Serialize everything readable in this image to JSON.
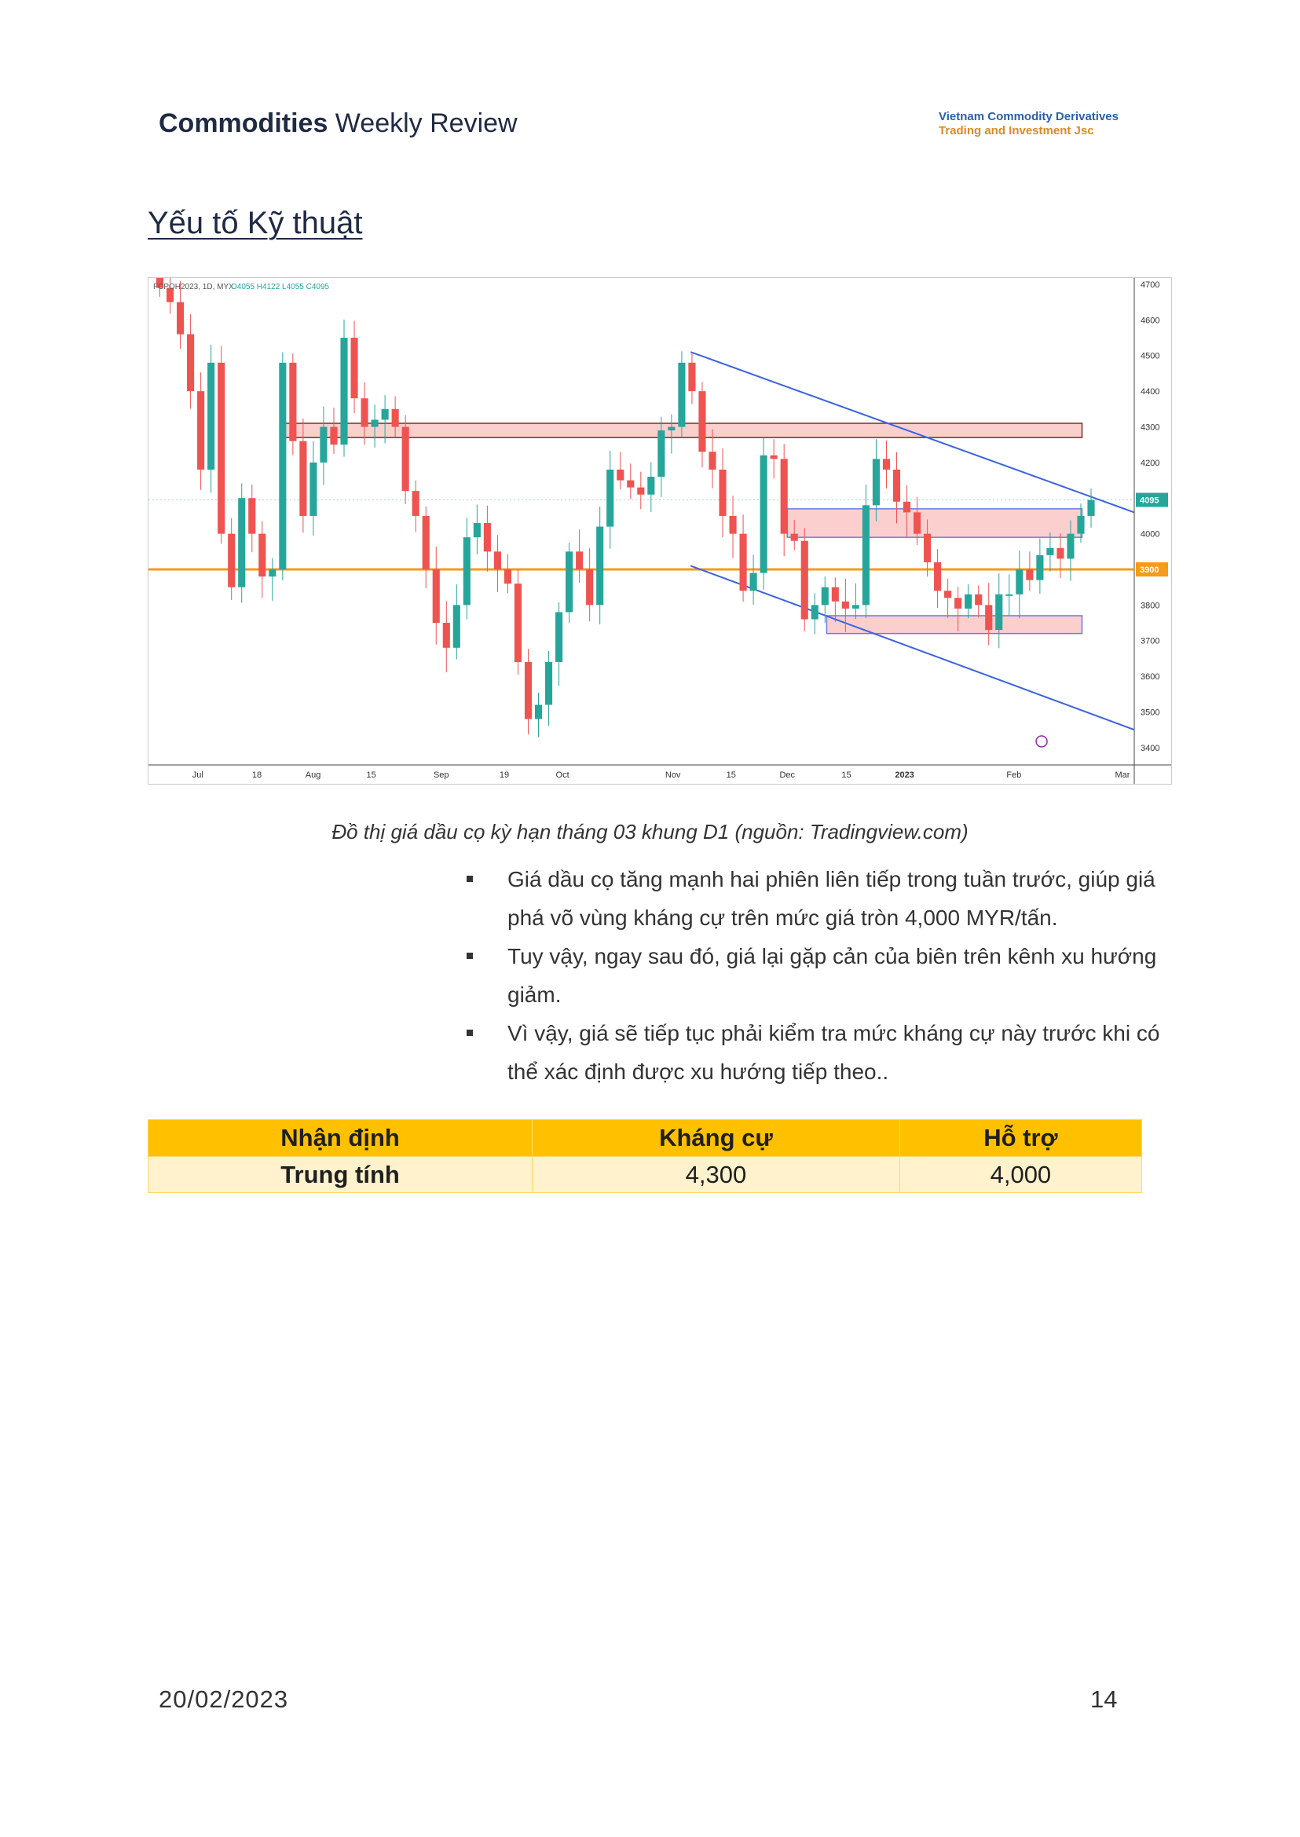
{
  "header": {
    "bold": "Commodities",
    "rest": " Weekly Review"
  },
  "logo": {
    "line1": "Vietnam Commodity Derivatives",
    "line2": "Trading and Investment Jsc"
  },
  "section_title": "Yếu tố Kỹ thuật",
  "chart_data": {
    "type": "candlestick",
    "title": "FCPOH2023, 1D, MYX",
    "ohlc_label": "O4055 H4122 L4055 C4095",
    "y_ticks": [
      4700,
      4600,
      4500,
      4400,
      4300,
      4200,
      4100,
      4000,
      3900,
      3800,
      3700,
      3600,
      3500,
      3400
    ],
    "ylim": [
      3360,
      4700
    ],
    "x_ticks": [
      "Jul",
      "18",
      "Aug",
      "15",
      "Sep",
      "19",
      "Oct",
      "Nov",
      "15",
      "Dec",
      "15",
      "2023",
      "Feb",
      "Mar"
    ],
    "price_label_current": "4095",
    "price_label_level": "3900",
    "horizontal_level": 3900,
    "resistance_zone": [
      4270,
      4310
    ],
    "zone_mid": [
      3990,
      4070
    ],
    "zone_low": [
      3720,
      3770
    ],
    "channel_upper": [
      [
        0.55,
        4510
      ],
      [
        1.0,
        4060
      ]
    ],
    "channel_lower": [
      [
        0.55,
        3910
      ],
      [
        1.0,
        3450
      ]
    ],
    "colors": {
      "up": "#26a69a",
      "down": "#ef5350",
      "level": "#f59b1a",
      "channel": "#3a62e0"
    },
    "closes": [
      4690,
      4650,
      4560,
      4400,
      4180,
      4480,
      4000,
      3850,
      4100,
      4000,
      3880,
      3900,
      4480,
      4260,
      4050,
      4200,
      4300,
      4250,
      4550,
      4380,
      4300,
      4320,
      4350,
      4300,
      4120,
      4050,
      3900,
      3750,
      3680,
      3800,
      3990,
      4030,
      3950,
      3900,
      3860,
      3640,
      3480,
      3520,
      3640,
      3780,
      3950,
      3900,
      3800,
      4020,
      4180,
      4150,
      4130,
      4110,
      4160,
      4290,
      4300,
      4480,
      4400,
      4230,
      4180,
      4050,
      4000,
      3840,
      3890,
      4220,
      4210,
      4000,
      3980,
      3760,
      3800,
      3850,
      3810,
      3790,
      3800,
      4080,
      4210,
      4180,
      4090,
      4060,
      4000,
      3920,
      3840,
      3820,
      3790,
      3830,
      3800,
      3730,
      3830,
      3830,
      3900,
      3870,
      3940,
      3960,
      3930,
      4000,
      4050,
      4095
    ]
  },
  "caption": "Đồ thị giá dầu cọ kỳ hạn tháng 03 khung D1 (nguồn: Tradingview.com)",
  "bullets": [
    "Giá dầu cọ tăng mạnh hai phiên liên tiếp trong tuần trước, giúp giá phá võ vùng kháng cự trên mức giá tròn 4,000 MYR/tấn.",
    "Tuy vậy, ngay sau đó, giá lại gặp cản của biên trên kênh xu hướng giảm.",
    "Vì vậy, giá sẽ tiếp tục phải kiểm tra mức kháng cự này trước khi có thể xác định được xu hướng tiếp theo.."
  ],
  "table": {
    "headers": [
      "Nhận định",
      "Kháng cự",
      "Hỗ trợ"
    ],
    "row": [
      "Trung tính",
      "4,300",
      "4,000"
    ]
  },
  "footer": {
    "date": "20/02/2023",
    "page": "14"
  }
}
